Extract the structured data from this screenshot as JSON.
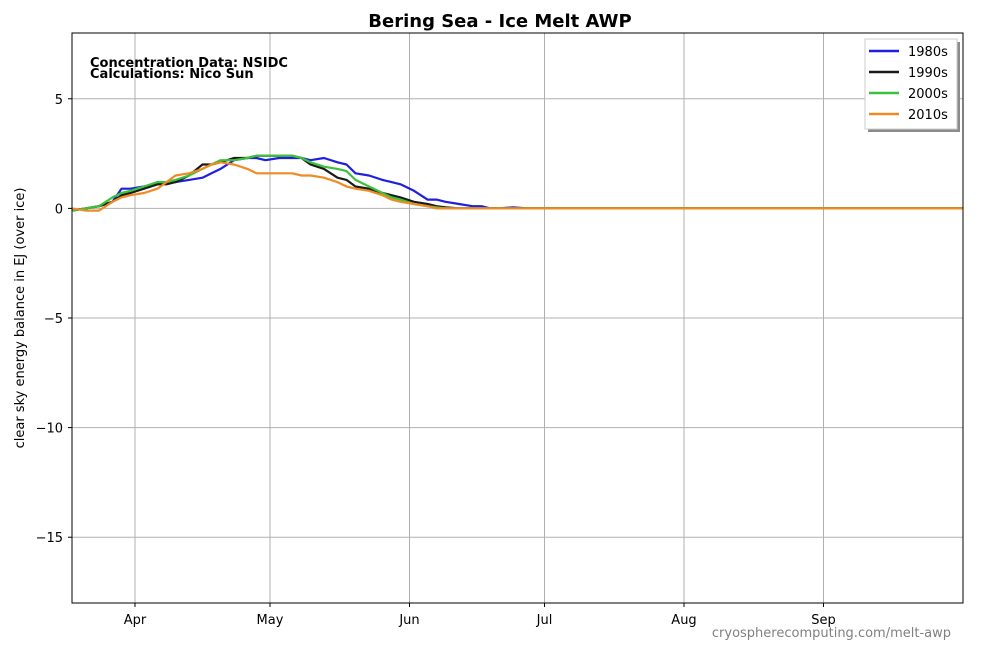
{
  "chart_data": {
    "type": "line",
    "title": "Bering Sea - Ice Melt AWP",
    "xlabel": "",
    "ylabel": "clear sky energy balance in EJ (over ice)",
    "x_unit": "day of year",
    "xlim": [
      77,
      275
    ],
    "ylim": [
      -18,
      8
    ],
    "x_ticks": [
      {
        "label": "Apr",
        "x": 91
      },
      {
        "label": "May",
        "x": 121
      },
      {
        "label": "Jun",
        "x": 152
      },
      {
        "label": "Jul",
        "x": 182
      },
      {
        "label": "Aug",
        "x": 213
      },
      {
        "label": "Sep",
        "x": 244
      }
    ],
    "y_ticks": [
      {
        "label": "5",
        "value": 5
      },
      {
        "label": "0",
        "value": 0
      },
      {
        "label": "−5",
        "value": -5
      },
      {
        "label": "−10",
        "value": -10
      },
      {
        "label": "−15",
        "value": -15
      }
    ],
    "grid": true,
    "legend_position": "top-right",
    "annotations": [
      "Concentration Data: NSIDC",
      "Calculations: Nico Sun"
    ],
    "credit": "cryospherecomputing.com/melt-awp",
    "series": [
      {
        "name": "1980s",
        "color": "#1f1fe0",
        "x": [
          77,
          80,
          83,
          86,
          88,
          90,
          93,
          96,
          98,
          100,
          103,
          106,
          108,
          110,
          113,
          116,
          118,
          120,
          123,
          126,
          128,
          130,
          133,
          136,
          138,
          140,
          143,
          146,
          148,
          150,
          153,
          156,
          158,
          160,
          163,
          166,
          168,
          170,
          172,
          175,
          178,
          275
        ],
        "y": [
          -0.1,
          0.0,
          0.1,
          0.3,
          0.9,
          0.9,
          1.0,
          1.1,
          1.2,
          1.2,
          1.3,
          1.4,
          1.6,
          1.8,
          2.2,
          2.3,
          2.3,
          2.2,
          2.3,
          2.3,
          2.3,
          2.2,
          2.3,
          2.1,
          2.0,
          1.6,
          1.5,
          1.3,
          1.2,
          1.1,
          0.8,
          0.4,
          0.4,
          0.3,
          0.2,
          0.1,
          0.1,
          0.0,
          0.0,
          0.05,
          0.0,
          0.0
        ]
      },
      {
        "name": "1990s",
        "color": "#1a1a1a",
        "x": [
          77,
          80,
          83,
          86,
          88,
          90,
          93,
          96,
          98,
          100,
          103,
          106,
          108,
          110,
          113,
          116,
          118,
          120,
          123,
          126,
          128,
          130,
          133,
          136,
          138,
          140,
          143,
          146,
          148,
          150,
          153,
          156,
          158,
          160,
          163,
          166,
          168,
          170,
          172,
          175,
          178,
          275
        ],
        "y": [
          -0.1,
          0.0,
          0.1,
          0.3,
          0.6,
          0.7,
          0.9,
          1.1,
          1.1,
          1.2,
          1.5,
          2.0,
          2.0,
          2.1,
          2.3,
          2.3,
          2.4,
          2.4,
          2.4,
          2.4,
          2.3,
          2.0,
          1.8,
          1.4,
          1.3,
          1.0,
          0.9,
          0.7,
          0.6,
          0.5,
          0.3,
          0.2,
          0.1,
          0.05,
          0.0,
          0.0,
          0.0,
          0.0,
          0.0,
          0.0,
          0.0,
          0.0
        ]
      },
      {
        "name": "2000s",
        "color": "#3ac23a",
        "x": [
          77,
          80,
          83,
          86,
          88,
          90,
          93,
          96,
          98,
          100,
          103,
          106,
          108,
          110,
          113,
          116,
          118,
          120,
          123,
          126,
          128,
          130,
          133,
          136,
          138,
          140,
          143,
          146,
          148,
          150,
          153,
          156,
          158,
          160,
          163,
          166,
          168,
          170,
          172,
          175,
          178,
          275
        ],
        "y": [
          -0.1,
          0.0,
          0.1,
          0.5,
          0.7,
          0.8,
          1.0,
          1.2,
          1.2,
          1.3,
          1.5,
          1.8,
          2.0,
          2.2,
          2.2,
          2.3,
          2.4,
          2.4,
          2.4,
          2.4,
          2.3,
          2.1,
          1.9,
          1.8,
          1.7,
          1.3,
          1.0,
          0.7,
          0.5,
          0.4,
          0.2,
          0.1,
          0.05,
          0.0,
          0.0,
          0.0,
          0.0,
          0.0,
          0.0,
          0.0,
          0.0,
          0.0
        ]
      },
      {
        "name": "2010s",
        "color": "#f08a24",
        "x": [
          77,
          80,
          83,
          86,
          88,
          90,
          93,
          96,
          98,
          100,
          103,
          106,
          108,
          110,
          113,
          116,
          118,
          120,
          123,
          126,
          128,
          130,
          133,
          136,
          138,
          140,
          143,
          146,
          148,
          150,
          153,
          156,
          158,
          160,
          163,
          166,
          168,
          170,
          172,
          175,
          178,
          275
        ],
        "y": [
          0.0,
          -0.1,
          -0.1,
          0.3,
          0.5,
          0.6,
          0.7,
          0.9,
          1.2,
          1.5,
          1.6,
          1.8,
          2.0,
          2.1,
          2.0,
          1.8,
          1.6,
          1.6,
          1.6,
          1.6,
          1.5,
          1.5,
          1.4,
          1.2,
          1.0,
          0.9,
          0.8,
          0.6,
          0.4,
          0.3,
          0.2,
          0.1,
          0.0,
          0.0,
          0.0,
          0.0,
          0.0,
          0.0,
          0.0,
          0.0,
          0.0,
          0.0
        ]
      }
    ]
  }
}
